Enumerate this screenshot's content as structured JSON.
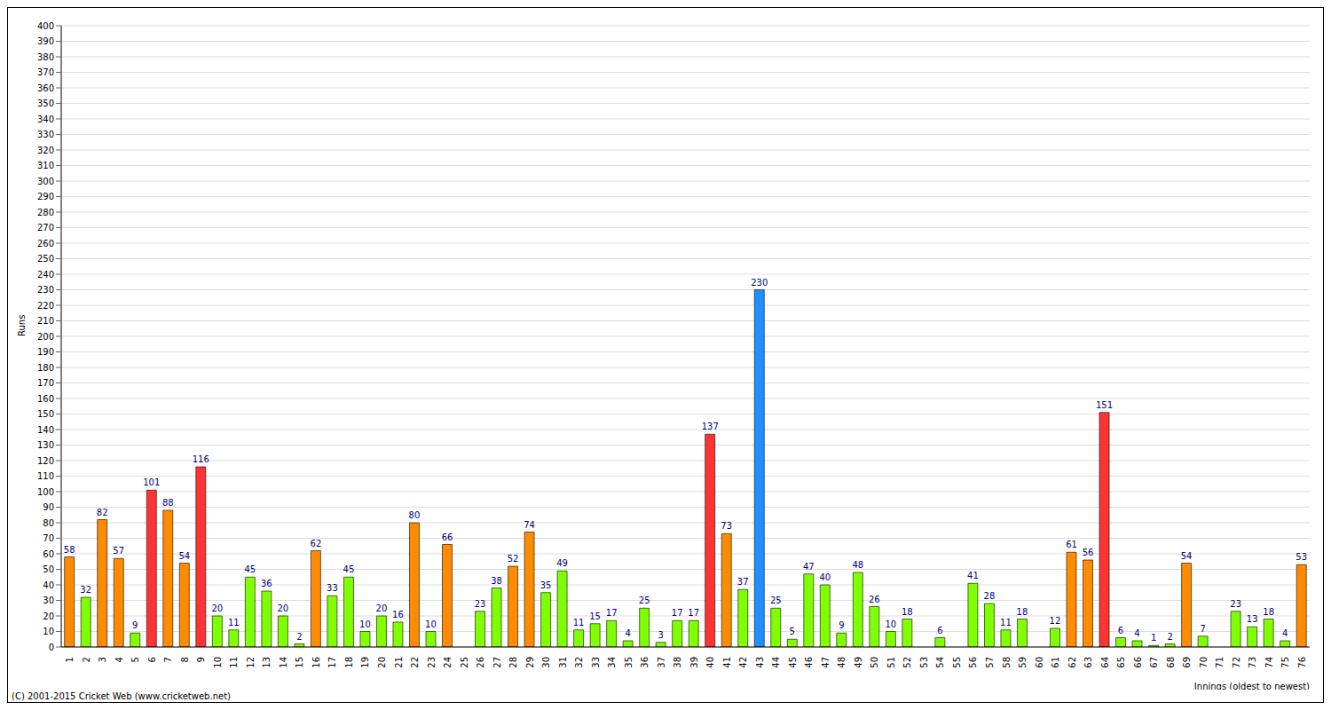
{
  "chart_data": {
    "type": "bar",
    "y_label": "Runs",
    "x_label": "Innings (oldest to newest)",
    "annotations": [
      "(C) 2001-2015 Cricket Web (www.cricketweb.net)"
    ],
    "categories": [
      "1",
      "2",
      "3",
      "4",
      "5",
      "6",
      "7",
      "8",
      "9",
      "10",
      "11",
      "12",
      "13",
      "14",
      "15",
      "16",
      "17",
      "18",
      "19",
      "20",
      "21",
      "22",
      "23",
      "24",
      "25",
      "26",
      "27",
      "28",
      "29",
      "30",
      "31",
      "32",
      "33",
      "34",
      "35",
      "36",
      "37",
      "38",
      "39",
      "40",
      "41",
      "42",
      "43",
      "44",
      "45",
      "46",
      "47",
      "48",
      "49",
      "50",
      "51",
      "52",
      "53",
      "54",
      "55",
      "56",
      "57",
      "58",
      "59",
      "60",
      "61",
      "62",
      "63",
      "64",
      "65",
      "66",
      "67",
      "68",
      "69",
      "70",
      "71",
      "72",
      "73",
      "74",
      "75",
      "76"
    ],
    "values": [
      58,
      32,
      82,
      57,
      9,
      101,
      88,
      54,
      116,
      20,
      11,
      45,
      36,
      20,
      2,
      62,
      33,
      45,
      10,
      20,
      16,
      80,
      10,
      66,
      0,
      23,
      38,
      52,
      74,
      35,
      49,
      11,
      15,
      17,
      4,
      25,
      3,
      17,
      17,
      137,
      73,
      37,
      230,
      25,
      5,
      47,
      40,
      9,
      48,
      26,
      10,
      18,
      0,
      6,
      0,
      41,
      28,
      11,
      18,
      0,
      12,
      61,
      56,
      151,
      6,
      4,
      1,
      2,
      54,
      7,
      0,
      23,
      13,
      18,
      4,
      53
    ],
    "colors": [
      "#ff8c00",
      "#7fff00",
      "#ff8c00",
      "#ff8c00",
      "#7fff00",
      "#ff3333",
      "#ff8c00",
      "#ff8c00",
      "#ff3333",
      "#7fff00",
      "#7fff00",
      "#7fff00",
      "#7fff00",
      "#7fff00",
      "#7fff00",
      "#ff8c00",
      "#7fff00",
      "#7fff00",
      "#7fff00",
      "#7fff00",
      "#7fff00",
      "#ff8c00",
      "#7fff00",
      "#ff8c00",
      "#7fff00",
      "#7fff00",
      "#7fff00",
      "#ff8c00",
      "#ff8c00",
      "#7fff00",
      "#7fff00",
      "#7fff00",
      "#7fff00",
      "#7fff00",
      "#7fff00",
      "#7fff00",
      "#7fff00",
      "#7fff00",
      "#7fff00",
      "#ff3333",
      "#ff8c00",
      "#7fff00",
      "#1e90ff",
      "#7fff00",
      "#7fff00",
      "#7fff00",
      "#7fff00",
      "#7fff00",
      "#7fff00",
      "#7fff00",
      "#7fff00",
      "#7fff00",
      "#7fff00",
      "#7fff00",
      "#7fff00",
      "#7fff00",
      "#7fff00",
      "#7fff00",
      "#7fff00",
      "#7fff00",
      "#7fff00",
      "#ff8c00",
      "#ff8c00",
      "#ff3333",
      "#7fff00",
      "#7fff00",
      "#7fff00",
      "#7fff00",
      "#ff8c00",
      "#7fff00",
      "#7fff00",
      "#7fff00",
      "#7fff00",
      "#7fff00",
      "#7fff00",
      "#ff8c00"
    ],
    "ylim": [
      0,
      400
    ],
    "yticks": [
      0,
      10,
      20,
      30,
      40,
      50,
      60,
      70,
      80,
      90,
      100,
      110,
      120,
      130,
      140,
      150,
      160,
      170,
      180,
      190,
      200,
      210,
      220,
      230,
      240,
      250,
      260,
      270,
      280,
      290,
      300,
      310,
      320,
      330,
      340,
      350,
      360,
      370,
      380,
      390,
      400
    ],
    "grid": true,
    "data_labels": true
  }
}
